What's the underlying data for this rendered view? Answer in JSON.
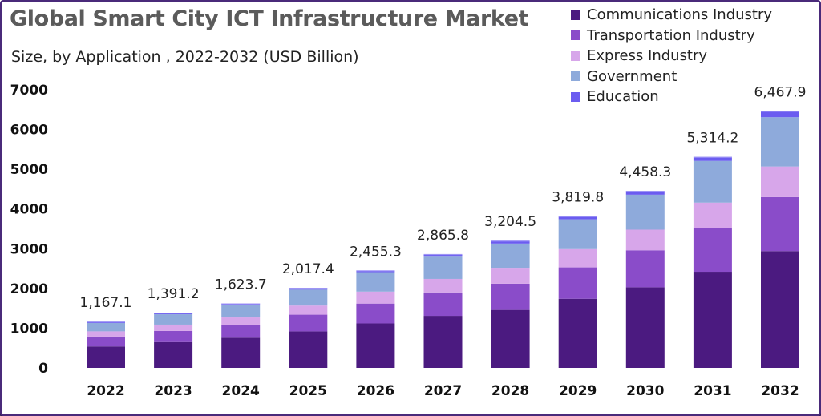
{
  "title": "Global Smart City ICT Infrastructure Market",
  "subtitle": "Size, by Application , 2022-2032 (USD Billion)",
  "colors": {
    "Communications Industry": "#4b1a80",
    "Transportation Industry": "#8a4cc9",
    "Express Industry": "#d7a6ea",
    "Government": "#8eaadb",
    "Education": "#6b5cf0"
  },
  "chart_data": {
    "type": "bar",
    "stacked": true,
    "title": "Global Smart City ICT Infrastructure Market",
    "subtitle": "Size, by Application , 2022-2032 (USD Billion)",
    "categories": [
      "2022",
      "2023",
      "2024",
      "2025",
      "2026",
      "2027",
      "2028",
      "2029",
      "2030",
      "2031",
      "2032"
    ],
    "series": [
      {
        "name": "Communications Industry",
        "values": [
          540,
          650,
          760,
          920,
          1120,
          1310,
          1460,
          1740,
          2030,
          2420,
          2940
        ]
      },
      {
        "name": "Transportation Industry",
        "values": [
          250,
          280,
          330,
          420,
          500,
          590,
          660,
          790,
          930,
          1100,
          1360
        ]
      },
      {
        "name": "Express Industry",
        "values": [
          130,
          160,
          180,
          230,
          300,
          340,
          400,
          460,
          520,
          640,
          770
        ]
      },
      {
        "name": "Government",
        "values": [
          210,
          260,
          320,
          400,
          490,
          560,
          610,
          750,
          880,
          1050,
          1240
        ]
      },
      {
        "name": "Education",
        "values": [
          37.1,
          41.2,
          33.7,
          47.4,
          45.3,
          65.8,
          74.5,
          79.8,
          98.3,
          104.2,
          157.9
        ]
      }
    ],
    "totals": [
      "1,167.1",
      "1,391.2",
      "1,623.7",
      "2,017.4",
      "2,455.3",
      "2,865.8",
      "3,204.5",
      "3,819.8",
      "4,458.3",
      "5,314.2",
      "6,467.9"
    ],
    "total_values": [
      1167.1,
      1391.2,
      1623.7,
      2017.4,
      2455.3,
      2865.8,
      3204.5,
      3819.8,
      4458.3,
      5314.2,
      6467.9
    ],
    "yticks": [
      "0",
      "1000",
      "2000",
      "3000",
      "4000",
      "5000",
      "6000",
      "7000"
    ],
    "ylim": [
      0,
      7000
    ],
    "xlabel": "",
    "ylabel": "",
    "legend_position": "top-right",
    "grid": false
  }
}
